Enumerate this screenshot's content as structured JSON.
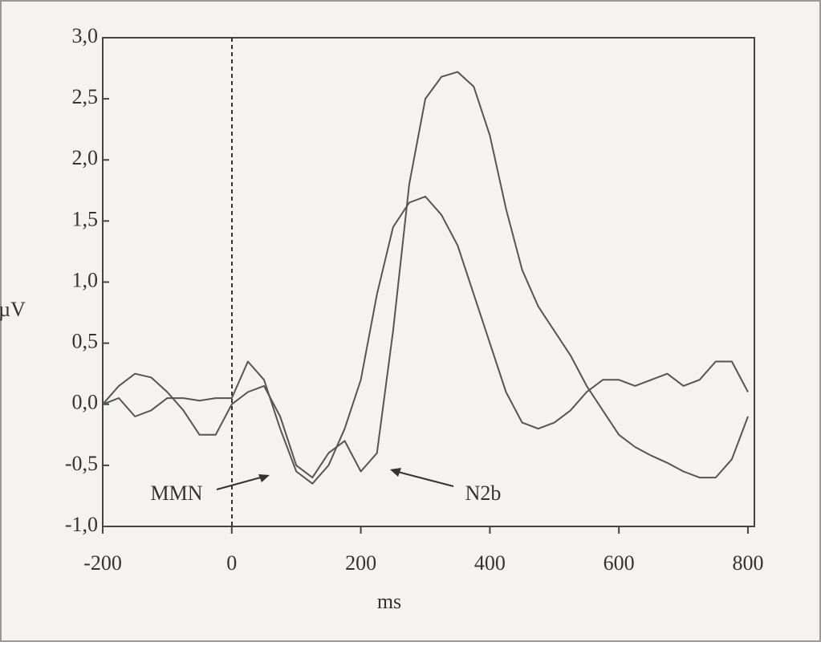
{
  "chart_data": {
    "type": "line",
    "x": [
      -200,
      -175,
      -150,
      -125,
      -100,
      -75,
      -50,
      -25,
      0,
      25,
      50,
      75,
      100,
      125,
      150,
      175,
      200,
      225,
      250,
      275,
      300,
      325,
      350,
      375,
      400,
      425,
      450,
      475,
      500,
      525,
      550,
      575,
      600,
      625,
      650,
      675,
      700,
      725,
      750,
      775,
      800
    ],
    "series": [
      {
        "color": "#555555",
        "values": [
          0.0,
          0.15,
          0.25,
          0.22,
          0.1,
          -0.05,
          -0.25,
          -0.25,
          0.0,
          0.1,
          0.15,
          -0.1,
          -0.5,
          -0.6,
          -0.4,
          -0.3,
          -0.55,
          -0.4,
          0.6,
          1.8,
          2.5,
          2.68,
          2.72,
          2.6,
          2.2,
          1.6,
          1.1,
          0.8,
          0.6,
          0.4,
          0.15,
          -0.05,
          -0.25,
          -0.35,
          -0.42,
          -0.48,
          -0.55,
          -0.6,
          -0.6,
          -0.45,
          -0.1
        ]
      },
      {
        "color": "#555555",
        "values": [
          0.0,
          0.05,
          -0.1,
          -0.05,
          0.05,
          0.05,
          0.03,
          0.05,
          0.05,
          0.35,
          0.2,
          -0.2,
          -0.55,
          -0.65,
          -0.5,
          -0.2,
          0.2,
          0.9,
          1.45,
          1.65,
          1.7,
          1.55,
          1.3,
          0.9,
          0.5,
          0.1,
          -0.15,
          -0.2,
          -0.15,
          -0.05,
          0.1,
          0.2,
          0.2,
          0.15,
          0.2,
          0.25,
          0.15,
          0.2,
          0.35,
          0.35,
          0.1
        ]
      }
    ],
    "xlim": [
      -200,
      810
    ],
    "ylim": [
      -1,
      3
    ],
    "xticks": [
      -200,
      0,
      200,
      400,
      600,
      800
    ],
    "yticks": [
      {
        "value": -1,
        "label": "-1,0"
      },
      {
        "value": -0.5,
        "label": "-0,5"
      },
      {
        "value": 0,
        "label": "0,0"
      },
      {
        "value": 0.5,
        "label": "0,5"
      },
      {
        "value": 1,
        "label": "1,0"
      },
      {
        "value": 1.5,
        "label": "1,5"
      },
      {
        "value": 2,
        "label": "2,0"
      },
      {
        "value": 2.5,
        "label": "2,5"
      },
      {
        "value": 3,
        "label": "3,0"
      }
    ],
    "xlabel": "ms",
    "ylabel": "µV",
    "annotations": [
      "MMN",
      "N2b"
    ]
  }
}
